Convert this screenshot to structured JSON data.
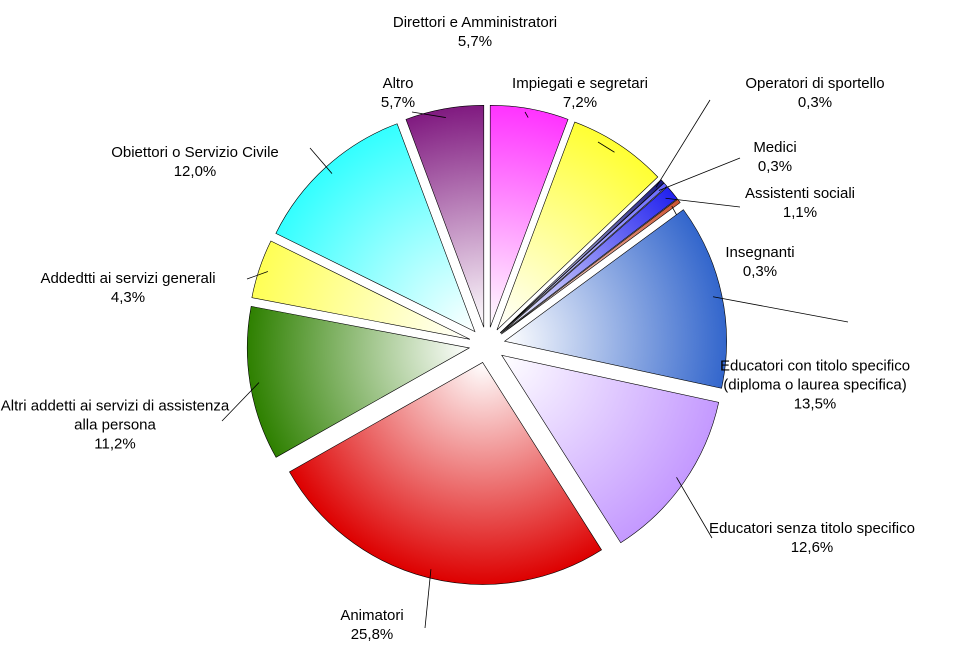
{
  "chart_data": {
    "type": "pie",
    "categories": [
      "Direttori e Amministratori",
      "Impiegati e segretari",
      "Operatori di sportello",
      "Medici",
      "Assistenti sociali",
      "Insegnanti",
      "Educatori con titolo specifico (diploma o laurea specifica)",
      "Educatori senza titolo specifico",
      "Animatori",
      "Altri addetti ai servizi di assistenza alla persona",
      "Addedtti ai servizi generali",
      "Obiettori o Servizio Civile",
      "Altro"
    ],
    "values": [
      5.7,
      7.2,
      0.3,
      0.3,
      1.1,
      0.3,
      13.5,
      12.6,
      25.8,
      11.2,
      4.3,
      12.0,
      5.7
    ],
    "value_labels": [
      "5,7%",
      "7,2%",
      "0,3%",
      "0,3%",
      "1,1%",
      "0,3%",
      "13,5%",
      "12,6%",
      "25,8%",
      "11,2%",
      "4,3%",
      "12,0%",
      "5,7%"
    ],
    "colors": [
      "#ff33ff",
      "#ffff33",
      "#1a1a80",
      "#6666ff",
      "#2222ee",
      "#cc5533",
      "#3366cc",
      "#c499ff",
      "#dd0000",
      "#2e8000",
      "#ffff55",
      "#33ffff",
      "#801a80"
    ]
  }
}
